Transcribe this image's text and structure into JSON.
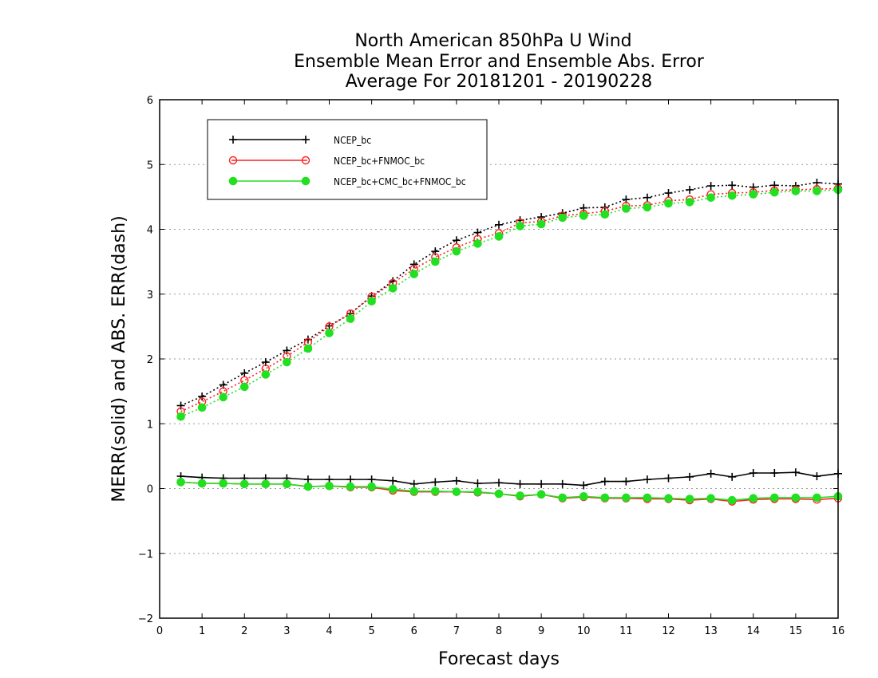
{
  "chart_data": {
    "type": "line",
    "title": [
      "North American 850hPa U Wind",
      "Ensemble Mean Error and Ensemble Abs. Error",
      "Average For 20181201 - 20190228"
    ],
    "xlabel": "Forecast days",
    "ylabel": "MERR(solid) and ABS. ERR(dash)",
    "xlim": [
      0,
      16
    ],
    "ylim": [
      -2,
      6
    ],
    "xticks": [
      0,
      1,
      2,
      3,
      4,
      5,
      6,
      7,
      8,
      9,
      10,
      11,
      12,
      13,
      14,
      15,
      16
    ],
    "yticks": [
      -2,
      -1,
      0,
      1,
      2,
      3,
      4,
      5,
      6
    ],
    "ytick_labels": [
      "−2",
      "−1",
      "0",
      "1",
      "2",
      "3",
      "4",
      "5",
      "6"
    ],
    "grid": "horizontal dotted",
    "legend_position": "top-left",
    "x": [
      0.5,
      1,
      1.5,
      2,
      2.5,
      3,
      3.5,
      4,
      4.5,
      5,
      5.5,
      6,
      6.5,
      7,
      7.5,
      8,
      8.5,
      9,
      9.5,
      10,
      10.5,
      11,
      11.5,
      12,
      12.5,
      13,
      13.5,
      14,
      14.5,
      15,
      15.5,
      16
    ],
    "series": [
      {
        "name": "NCEP_bc",
        "color": "#000000",
        "marker": "plus",
        "merr": [
          0.19,
          0.17,
          0.16,
          0.16,
          0.16,
          0.16,
          0.14,
          0.14,
          0.14,
          0.14,
          0.12,
          0.07,
          0.1,
          0.12,
          0.08,
          0.09,
          0.07,
          0.07,
          0.07,
          0.05,
          0.11,
          0.11,
          0.14,
          0.16,
          0.18,
          0.23,
          0.18,
          0.24,
          0.24,
          0.25,
          0.19,
          0.23
        ],
        "abs_err": [
          1.28,
          1.42,
          1.6,
          1.78,
          1.95,
          2.13,
          2.3,
          2.51,
          2.7,
          2.97,
          3.2,
          3.46,
          3.66,
          3.83,
          3.95,
          4.07,
          4.14,
          4.19,
          4.25,
          4.33,
          4.34,
          4.46,
          4.49,
          4.56,
          4.61,
          4.67,
          4.68,
          4.65,
          4.68,
          4.67,
          4.72,
          4.7
        ]
      },
      {
        "name": "NCEP_bc+FNMOC_bc",
        "color": "#ff2020",
        "marker": "open-circle",
        "merr": [
          0.1,
          0.08,
          0.08,
          0.07,
          0.07,
          0.07,
          0.03,
          0.04,
          0.02,
          0.02,
          -0.03,
          -0.05,
          -0.05,
          -0.05,
          -0.06,
          -0.08,
          -0.12,
          -0.09,
          -0.15,
          -0.13,
          -0.15,
          -0.15,
          -0.16,
          -0.16,
          -0.18,
          -0.16,
          -0.2,
          -0.17,
          -0.16,
          -0.16,
          -0.17,
          -0.15
        ],
        "abs_err": [
          1.19,
          1.34,
          1.5,
          1.67,
          1.85,
          2.04,
          2.26,
          2.5,
          2.7,
          2.96,
          3.17,
          3.39,
          3.57,
          3.72,
          3.85,
          3.94,
          4.1,
          4.12,
          4.21,
          4.24,
          4.28,
          4.36,
          4.37,
          4.44,
          4.46,
          4.54,
          4.56,
          4.57,
          4.6,
          4.61,
          4.62,
          4.63
        ]
      },
      {
        "name": "NCEP_bc+CMC_bc+FNMOC_bc",
        "color": "#20e020",
        "marker": "filled-circle",
        "merr": [
          0.1,
          0.08,
          0.08,
          0.07,
          0.07,
          0.07,
          0.03,
          0.04,
          0.03,
          0.03,
          -0.01,
          -0.04,
          -0.04,
          -0.05,
          -0.05,
          -0.08,
          -0.11,
          -0.09,
          -0.14,
          -0.12,
          -0.14,
          -0.14,
          -0.14,
          -0.15,
          -0.16,
          -0.15,
          -0.18,
          -0.15,
          -0.14,
          -0.14,
          -0.14,
          -0.12
        ],
        "abs_err": [
          1.11,
          1.25,
          1.41,
          1.57,
          1.76,
          1.95,
          2.16,
          2.4,
          2.62,
          2.89,
          3.09,
          3.31,
          3.5,
          3.66,
          3.78,
          3.89,
          4.05,
          4.08,
          4.18,
          4.21,
          4.23,
          4.32,
          4.34,
          4.4,
          4.42,
          4.49,
          4.52,
          4.54,
          4.57,
          4.59,
          4.59,
          4.61
        ]
      }
    ]
  }
}
